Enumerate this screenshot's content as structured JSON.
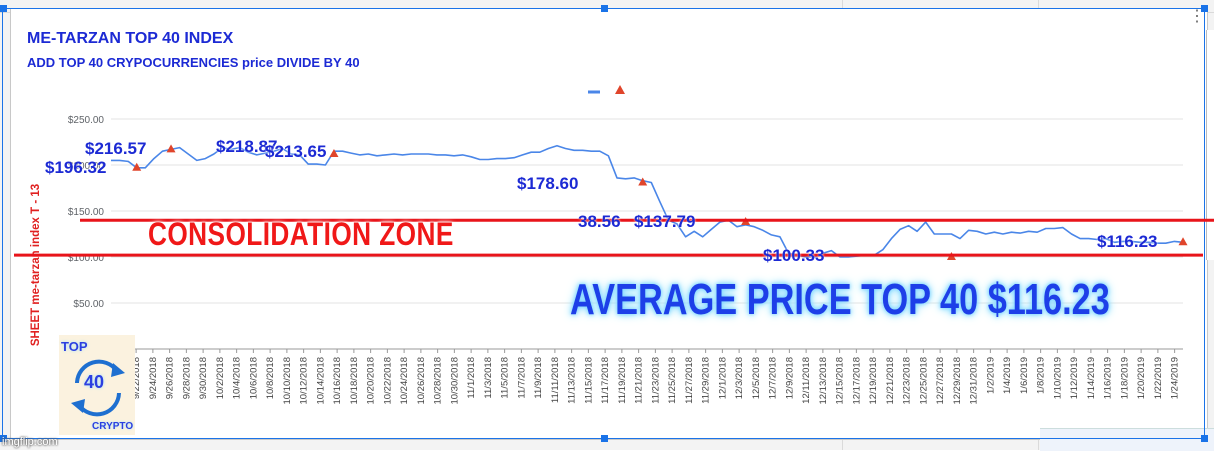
{
  "chart": {
    "title": "ME-TARZAN TOP 40 INDEX",
    "subtitle": "ADD TOP 40 CRYPOCURRENCIES price DIVIDE BY 40",
    "axis_label": "SHEET me-tarzan index   T - 13",
    "menu": "⋮"
  },
  "overlay": {
    "zone_label": "CONSOLIDATION  ZONE",
    "average_label": "AVERAGE PRICE TOP 40   $116.23"
  },
  "annotations": [
    "$216.57",
    "$218.87",
    "$213.65",
    "$196.32",
    "$178.60",
    "38.56",
    "$137.79",
    "$100.33",
    "$116.23"
  ],
  "logo": {
    "top": "TOP",
    "number": "40",
    "bottom": "CRYPTO"
  },
  "watermark": "imgflip.com",
  "colors": {
    "series": "#4a86e8",
    "marker": "#e0452b",
    "lines": "#e8141a",
    "title": "#1c2ad4"
  },
  "chart_data": {
    "type": "line",
    "title": "ME-TARZAN TOP 40 INDEX",
    "subtitle": "ADD TOP 40 CRYPOCURRENCIES price DIVIDE BY 40",
    "ylabel": "SHEET me-tarzan index   T - 13",
    "ylim": [
      0,
      262
    ],
    "y_ticks": [
      50,
      100,
      150,
      200,
      250
    ],
    "y_tick_labels": [
      "$50.00",
      "$100.00",
      "$150.00",
      "$200.00",
      "$250.00"
    ],
    "x_ticks": [
      "9/20/2018",
      "9/22/2018",
      "9/24/2018",
      "9/26/2018",
      "9/28/2018",
      "9/30/2018",
      "10/2/2018",
      "10/4/2018",
      "10/6/2018",
      "10/8/2018",
      "10/10/2018",
      "10/12/2018",
      "10/14/2018",
      "10/16/2018",
      "10/18/2018",
      "10/20/2018",
      "10/22/2018",
      "10/24/2018",
      "10/26/2018",
      "10/28/2018",
      "10/30/2018",
      "11/1/2018",
      "11/3/2018",
      "11/5/2018",
      "11/7/2018",
      "11/9/2018",
      "11/11/2018",
      "11/13/2018",
      "11/15/2018",
      "11/17/2018",
      "11/19/2018",
      "11/21/2018",
      "11/23/2018",
      "11/25/2018",
      "11/27/2018",
      "11/29/2018",
      "12/1/2018",
      "12/3/2018",
      "12/5/2018",
      "12/7/2018",
      "12/9/2018",
      "12/11/2018",
      "12/13/2018",
      "12/15/2018",
      "12/17/2018",
      "12/19/2018",
      "12/21/2018",
      "12/23/2018",
      "12/25/2018",
      "12/27/2018",
      "12/29/2018",
      "12/31/2018",
      "1/2/2019",
      "1/4/2019",
      "1/6/2019",
      "1/8/2019",
      "1/10/2019",
      "1/12/2019",
      "1/14/2019",
      "1/16/2019",
      "1/18/2019",
      "1/20/2019",
      "1/22/2019",
      "1/24/2019"
    ],
    "series": [
      {
        "values": [
          205,
          205,
          204,
          197,
          197,
          207,
          215,
          217,
          219,
          212,
          205,
          207,
          212,
          219,
          217,
          219,
          214,
          211,
          213,
          215,
          218,
          212,
          211,
          201,
          201,
          200,
          215,
          215,
          213,
          211,
          212,
          210,
          211,
          212,
          211,
          212,
          212,
          212,
          211,
          211,
          210,
          211,
          209,
          206,
          206,
          207,
          207,
          208,
          211,
          214,
          214,
          218,
          221,
          218,
          216,
          216,
          215,
          215,
          210,
          186,
          185,
          186,
          183,
          181,
          160,
          140,
          136,
          122,
          128,
          122,
          130,
          138,
          140,
          133,
          135,
          133,
          129,
          124,
          122,
          104,
          102,
          100,
          100,
          104,
          107,
          100,
          100,
          101,
          102,
          102,
          108,
          120,
          130,
          134,
          128,
          138,
          125,
          125,
          125,
          120,
          129,
          128,
          125,
          127,
          125,
          127,
          126,
          128,
          127,
          131,
          131,
          132,
          125,
          120,
          120,
          119,
          120,
          116,
          117,
          117,
          116,
          116,
          115,
          115,
          117,
          116
        ]
      }
    ],
    "markers": [
      {
        "index": 3,
        "value": 197
      },
      {
        "index": 7,
        "value": 217
      },
      {
        "index": 26,
        "value": 212
      },
      {
        "index": 62,
        "value": 181
      },
      {
        "index": 74,
        "value": 138
      },
      {
        "index": 98,
        "value": 100
      },
      {
        "index": 125,
        "value": 116
      }
    ],
    "reference_lines": [
      140,
      102
    ]
  }
}
